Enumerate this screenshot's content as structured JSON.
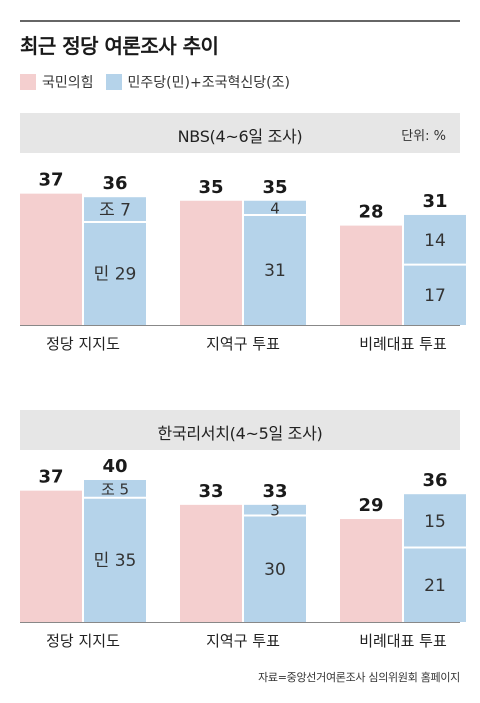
{
  "title": "최근 정당 여론조사 추이",
  "legend": [
    {
      "label": "국민의힘",
      "color": "#f4cfcf"
    },
    {
      "label": "민주당(민)+조국혁신당(조)",
      "color": "#b5d3ea"
    }
  ],
  "source": "자료=중앙선거여론조사 심의위원회 홈페이지",
  "chart_data": [
    {
      "type": "bar",
      "title": "NBS(4~6일 조사)",
      "unit_label": "단위: %",
      "categories": [
        "정당 지지도",
        "지역구 투표",
        "비례대표 투표"
      ],
      "series": [
        {
          "name": "국민의힘",
          "values": [
            37,
            35,
            28
          ]
        },
        {
          "name": "민주당(민)+조국혁신당(조)",
          "values": [
            36,
            35,
            31
          ],
          "segments": [
            [
              {
                "label": "민 29",
                "value": 29
              },
              {
                "label": "조 7",
                "value": 7
              }
            ],
            [
              {
                "label": "31",
                "value": 31
              },
              {
                "label": "4",
                "value": 4
              }
            ],
            [
              {
                "label": "17",
                "value": 17
              },
              {
                "label": "14",
                "value": 14
              }
            ]
          ]
        }
      ]
    },
    {
      "type": "bar",
      "title": "한국리서치(4~5일 조사)",
      "unit_label": "",
      "categories": [
        "정당 지지도",
        "지역구 투표",
        "비례대표 투표"
      ],
      "series": [
        {
          "name": "국민의힘",
          "values": [
            37,
            33,
            29
          ]
        },
        {
          "name": "민주당(민)+조국혁신당(조)",
          "values": [
            40,
            33,
            36
          ],
          "segments": [
            [
              {
                "label": "민 35",
                "value": 35
              },
              {
                "label": "조 5",
                "value": 5
              }
            ],
            [
              {
                "label": "30",
                "value": 30
              },
              {
                "label": "3",
                "value": 3
              }
            ],
            [
              {
                "label": "21",
                "value": 21
              },
              {
                "label": "15",
                "value": 15
              }
            ]
          ]
        }
      ]
    }
  ]
}
